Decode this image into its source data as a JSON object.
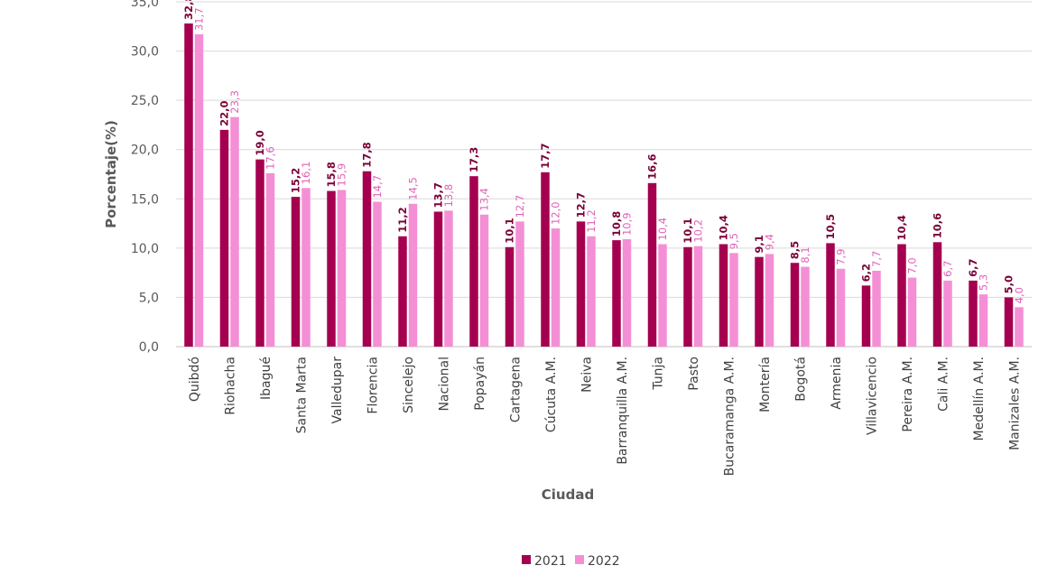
{
  "chart_data": {
    "type": "bar",
    "title": "",
    "xlabel": "Ciudad",
    "ylabel": "Porcentaje(%)",
    "ylim": [
      0,
      35
    ],
    "yticks": [
      "0,0",
      "5,0",
      "10,0",
      "15,0",
      "20,0",
      "25,0",
      "30,0",
      "35,0"
    ],
    "grid": true,
    "legend_position": "bottom",
    "categories": [
      "Quibdó",
      "Riohacha",
      "Ibagué",
      "Santa Marta",
      "Valledupar",
      "Florencia",
      "Sincelejo",
      "Nacional",
      "Popayán",
      "Cartagena",
      "Cúcuta A.M.",
      "Neiva",
      "Barranquilla A.M.",
      "Tunja",
      "Pasto",
      "Bucaramanga A.M.",
      "Montería",
      "Bogotá",
      "Armenia",
      "Villavicencio",
      "Pereira A.M.",
      "Cali A.M.",
      "Medellín A.M.",
      "Manizales A.M."
    ],
    "series": [
      {
        "name": "2021",
        "color": "#A5004F",
        "label_color": "#7A0038",
        "values": [
          32.8,
          22.0,
          19.0,
          15.2,
          15.8,
          17.8,
          11.2,
          13.7,
          17.3,
          10.1,
          17.7,
          12.7,
          10.8,
          16.6,
          10.1,
          10.4,
          9.1,
          8.5,
          10.5,
          6.2,
          10.4,
          10.6,
          6.7,
          5.0
        ]
      },
      {
        "name": "2022",
        "color": "#F48FD6",
        "label_color": "#E060B8",
        "values": [
          31.7,
          23.3,
          17.6,
          16.1,
          15.9,
          14.7,
          14.5,
          13.8,
          13.4,
          12.7,
          12.0,
          11.2,
          10.9,
          10.4,
          10.2,
          9.5,
          9.4,
          8.1,
          7.9,
          7.7,
          7.0,
          6.7,
          5.3,
          4.0
        ]
      }
    ]
  }
}
